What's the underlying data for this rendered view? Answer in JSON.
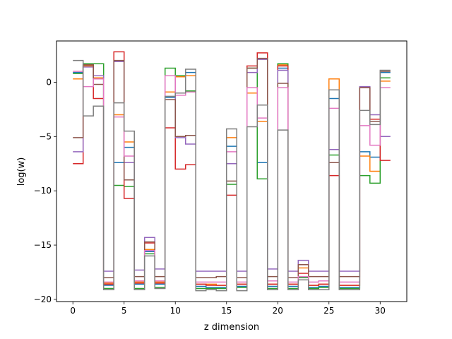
{
  "chart_data": {
    "type": "line",
    "step": "post",
    "title": "",
    "xlabel": "z dimension",
    "ylabel": "log(w)",
    "xlim": [
      -1.6,
      32.6
    ],
    "ylim": [
      -20.2,
      3.8
    ],
    "xticks": [
      0,
      5,
      10,
      15,
      20,
      25,
      30
    ],
    "yticks": [
      0,
      -5,
      -10,
      -15,
      -20
    ],
    "xtick_labels": [
      "0",
      "5",
      "10",
      "15",
      "20",
      "25",
      "30"
    ],
    "ytick_labels": [
      "0",
      "−5",
      "−10",
      "−15",
      "−20"
    ],
    "grid": false,
    "legend": "none",
    "x_edges": [
      0,
      1,
      2,
      3,
      4,
      5,
      6,
      7,
      8,
      9,
      10,
      11,
      12,
      13,
      14,
      15,
      16,
      17,
      18,
      19,
      20,
      21,
      22,
      23,
      24,
      25,
      26,
      27,
      28,
      29,
      30,
      31
    ],
    "series": [
      {
        "color": "#1f77b4",
        "values": [
          0.9,
          1.5,
          0.4,
          -18.7,
          -7.4,
          -6.0,
          -18.6,
          -15.6,
          -18.6,
          -1.4,
          0.5,
          0.9,
          -18.8,
          -18.9,
          -18.9,
          -5.9,
          -18.8,
          -1.0,
          -7.4,
          -18.8,
          1.3,
          -18.8,
          -18.0,
          -18.9,
          -18.8,
          -1.5,
          -18.9,
          -18.9,
          -6.4,
          -6.9,
          0.9
        ]
      },
      {
        "color": "#ff7f0e",
        "values": [
          0.3,
          1.5,
          0.4,
          -18.5,
          -3.0,
          -5.5,
          -18.4,
          -15.4,
          -18.4,
          -0.9,
          0.5,
          0.6,
          -18.6,
          -18.6,
          -18.7,
          -5.1,
          -18.6,
          -1.0,
          -3.6,
          -18.6,
          1.6,
          -18.6,
          -17.1,
          -18.7,
          -18.6,
          0.3,
          -18.7,
          -18.7,
          -6.8,
          -8.2,
          0.1
        ]
      },
      {
        "color": "#2ca02c",
        "values": [
          0.8,
          1.7,
          1.7,
          -19.0,
          -9.5,
          -9.6,
          -19.0,
          -15.8,
          -18.9,
          1.3,
          0.6,
          -0.8,
          -19.0,
          -19.0,
          -19.0,
          -9.4,
          -18.9,
          1.3,
          -8.9,
          -19.0,
          1.7,
          -19.0,
          -18.0,
          -19.0,
          -18.9,
          -6.7,
          -19.0,
          -19.0,
          -8.6,
          -9.3,
          0.4
        ]
      },
      {
        "color": "#d62728",
        "values": [
          -7.5,
          1.6,
          -1.5,
          -18.6,
          2.8,
          -10.7,
          -18.5,
          -14.8,
          -18.5,
          -4.2,
          -8.0,
          -7.6,
          -18.6,
          -18.7,
          -18.7,
          -10.4,
          -18.6,
          1.5,
          2.7,
          -18.6,
          1.5,
          -18.6,
          -17.6,
          -18.7,
          -18.6,
          -8.6,
          -18.7,
          -18.7,
          -0.5,
          -3.4,
          -7.2
        ]
      },
      {
        "color": "#9467bd",
        "values": [
          -6.4,
          1.4,
          0.6,
          -17.4,
          1.9,
          -7.4,
          -17.3,
          -14.3,
          -17.2,
          0.6,
          -5.1,
          -5.7,
          -17.4,
          -17.4,
          -17.4,
          -7.5,
          -17.4,
          0.9,
          2.1,
          -17.2,
          1.1,
          -17.4,
          -16.4,
          -17.4,
          -17.4,
          -6.2,
          -17.4,
          -17.4,
          -0.4,
          -3.0,
          -5.0
        ]
      },
      {
        "color": "#8c564b",
        "values": [
          -5.1,
          1.6,
          -0.2,
          -18.0,
          2.0,
          -9.0,
          -17.9,
          -14.7,
          -17.9,
          -1.6,
          -5.0,
          -4.9,
          -18.0,
          -18.0,
          -17.9,
          -9.1,
          -18.0,
          1.3,
          2.2,
          -17.9,
          -0.1,
          -18.0,
          -16.8,
          -17.9,
          -17.9,
          -7.4,
          -17.9,
          -17.9,
          -0.5,
          -3.6,
          1.0
        ]
      },
      {
        "color": "#e377c2",
        "values": [
          1.0,
          -0.4,
          0.3,
          -18.4,
          -3.2,
          -6.8,
          -18.3,
          -15.5,
          -18.3,
          0.6,
          -1.2,
          -0.9,
          -18.4,
          -18.4,
          -18.4,
          -6.4,
          -18.4,
          -0.5,
          -3.3,
          -18.3,
          -0.5,
          -18.4,
          -17.9,
          -18.4,
          -18.3,
          -2.4,
          -18.4,
          -18.4,
          -4.0,
          -5.8,
          -0.5
        ]
      },
      {
        "color": "#7f7f7f",
        "values": [
          2.0,
          -3.1,
          -2.2,
          -19.1,
          -1.9,
          -4.5,
          -19.1,
          -16.0,
          -19.0,
          -1.3,
          -1.0,
          1.2,
          -19.2,
          -19.1,
          -19.2,
          -4.3,
          -19.2,
          -4.1,
          -2.1,
          -19.1,
          -4.4,
          -19.1,
          -18.2,
          -19.1,
          -19.1,
          -0.7,
          -19.1,
          -19.1,
          -2.6,
          -3.9,
          1.1
        ]
      }
    ]
  }
}
